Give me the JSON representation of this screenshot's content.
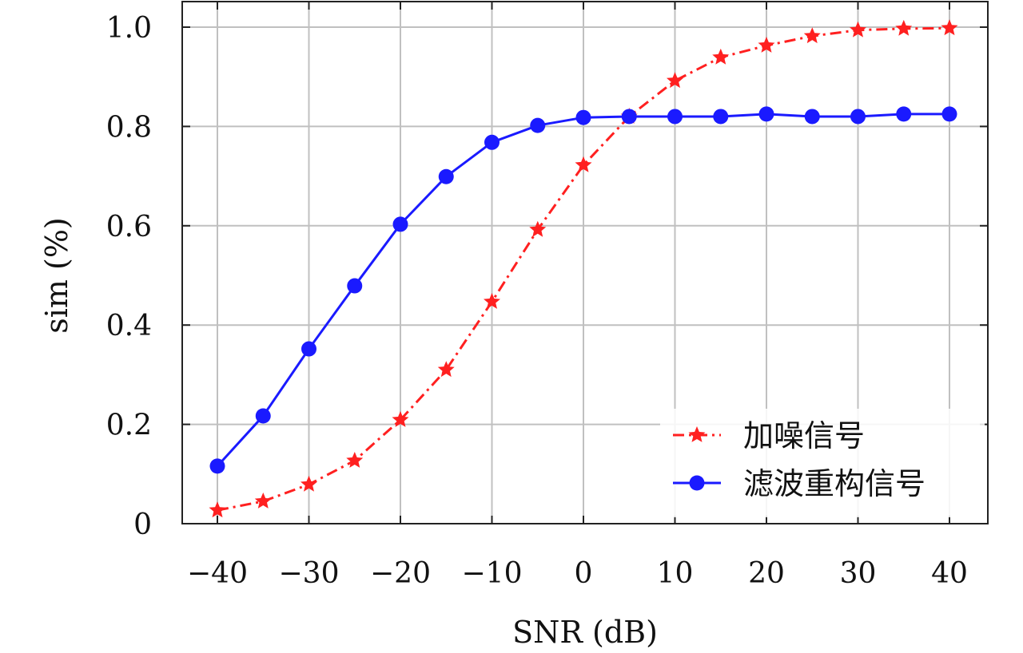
{
  "chart_data": {
    "type": "line",
    "title": "",
    "xlabel": "SNR (dB)",
    "ylabel": "sim (%)",
    "xlim": [
      -44.5,
      44
    ],
    "ylim": [
      0,
      1.05
    ],
    "grid": true,
    "legend_position": "bottom-right",
    "xticks": [
      -40,
      -30,
      -20,
      -10,
      0,
      10,
      20,
      30,
      40
    ],
    "xtick_labels": [
      "−40",
      "−30",
      "−20",
      "−10",
      "0",
      "10",
      "20",
      "30",
      "40"
    ],
    "yticks": [
      0,
      0.2,
      0.4,
      0.6,
      0.8,
      1.0
    ],
    "ytick_labels": [
      "0",
      "0.2",
      "0.4",
      "0.6",
      "0.8",
      "1.0"
    ],
    "x": [
      -40,
      -35,
      -30,
      -25,
      -20,
      -15,
      -10,
      -5,
      0,
      5,
      10,
      15,
      20,
      25,
      30,
      35,
      40
    ],
    "series": [
      {
        "name": "加噪信号",
        "color": "#ff2020",
        "marker": "star",
        "line_style": "dash-dot",
        "values": [
          0.027,
          0.045,
          0.079,
          0.127,
          0.209,
          0.31,
          0.447,
          0.592,
          0.722,
          0.82,
          0.892,
          0.939,
          0.963,
          0.982,
          0.994,
          0.997,
          0.998
        ]
      },
      {
        "name": "滤波重构信号",
        "color": "#1a1aff",
        "marker": "circle",
        "line_style": "solid",
        "values": [
          0.116,
          0.217,
          0.352,
          0.479,
          0.603,
          0.699,
          0.768,
          0.802,
          0.818,
          0.82,
          0.82,
          0.82,
          0.825,
          0.82,
          0.82,
          0.825,
          0.825
        ]
      }
    ]
  }
}
